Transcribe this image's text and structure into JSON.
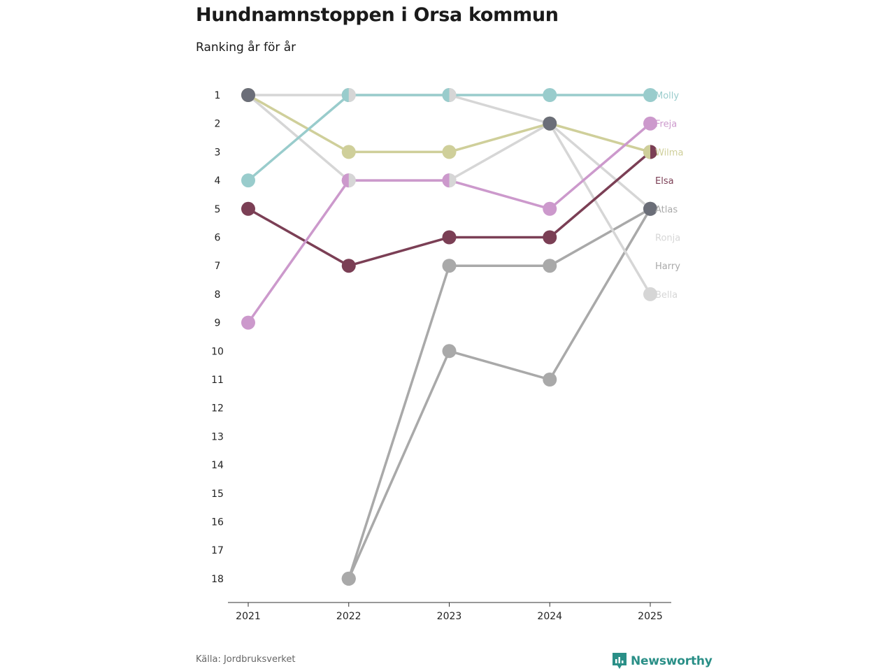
{
  "header": {
    "title": "Hundnamnstoppen i Orsa kommun",
    "subtitle": "Ranking år för år"
  },
  "footer": {
    "source": "Källa: Jordbruksverket",
    "brand": "Newsworthy",
    "brand_color": "#2a8f87"
  },
  "chart_data": {
    "type": "line",
    "subtype": "bump",
    "title": "Hundnamnstoppen i Orsa kommun",
    "subtitle": "Ranking år för år",
    "x": [
      "2021",
      "2022",
      "2023",
      "2024",
      "2025"
    ],
    "y_ticks": [
      "1",
      "2",
      "3",
      "4",
      "5",
      "6",
      "7",
      "8",
      "9",
      "10",
      "11",
      "12",
      "13",
      "14",
      "15",
      "16",
      "17",
      "18"
    ],
    "ylim": [
      1,
      18
    ],
    "y_inverted": true,
    "grid": false,
    "series": [
      {
        "name": "Harry",
        "color": "#a9a9a9",
        "values": [
          null,
          18,
          10,
          11,
          5
        ]
      },
      {
        "name": "Atlas",
        "color": "#a9a9a9",
        "values": [
          null,
          18,
          7,
          7,
          5
        ]
      },
      {
        "name": "Bella",
        "color": "#d6d6d6",
        "values": [
          1,
          4,
          4,
          2,
          8
        ]
      },
      {
        "name": "Ronja",
        "color": "#d6d6d6",
        "values": [
          1,
          1,
          1,
          2,
          5
        ]
      },
      {
        "name": "Elsa",
        "color": "#7b3f55",
        "values": [
          5,
          7,
          6,
          6,
          3
        ]
      },
      {
        "name": "Wilma",
        "color": "#cfcf9a",
        "values": [
          1,
          3,
          3,
          2,
          3
        ]
      },
      {
        "name": "Freja",
        "color": "#cc99cc",
        "values": [
          9,
          4,
          4,
          5,
          2
        ]
      },
      {
        "name": "Molly",
        "color": "#99cccc",
        "values": [
          4,
          1,
          1,
          1,
          1
        ]
      }
    ],
    "shared_markers": [
      {
        "x": "2021",
        "y": 1,
        "colors": [
          "#6b6e78"
        ]
      },
      {
        "x": "2022",
        "y": 1,
        "colors": [
          "#99cccc",
          "#d6d6d6"
        ]
      },
      {
        "x": "2022",
        "y": 4,
        "colors": [
          "#cc99cc",
          "#d6d6d6"
        ]
      },
      {
        "x": "2022",
        "y": 18,
        "colors": [
          "#a9a9a9"
        ]
      },
      {
        "x": "2023",
        "y": 1,
        "colors": [
          "#99cccc",
          "#d6d6d6"
        ]
      },
      {
        "x": "2023",
        "y": 4,
        "colors": [
          "#cc99cc",
          "#d6d6d6"
        ]
      },
      {
        "x": "2024",
        "y": 2,
        "colors": [
          "#6b6e78"
        ]
      },
      {
        "x": "2025",
        "y": 3,
        "colors": [
          "#cfcf9a",
          "#7b3f55"
        ]
      },
      {
        "x": "2025",
        "y": 5,
        "colors": [
          "#6b6e78"
        ]
      }
    ],
    "end_labels": [
      {
        "name": "Molly",
        "rank": 1,
        "color": "#99cccc"
      },
      {
        "name": "Freja",
        "rank": 2,
        "color": "#cc99cc"
      },
      {
        "name": "Wilma",
        "rank": 3,
        "color": "#cfcf9a"
      },
      {
        "name": "Elsa",
        "rank": 4,
        "color": "#7b3f55"
      },
      {
        "name": "Atlas",
        "rank": 5,
        "color": "#a9a9a9"
      },
      {
        "name": "Ronja",
        "rank": 6,
        "color": "#d6d6d6"
      },
      {
        "name": "Harry",
        "rank": 7,
        "color": "#a9a9a9"
      },
      {
        "name": "Bella",
        "rank": 8,
        "color": "#d6d6d6"
      }
    ]
  }
}
